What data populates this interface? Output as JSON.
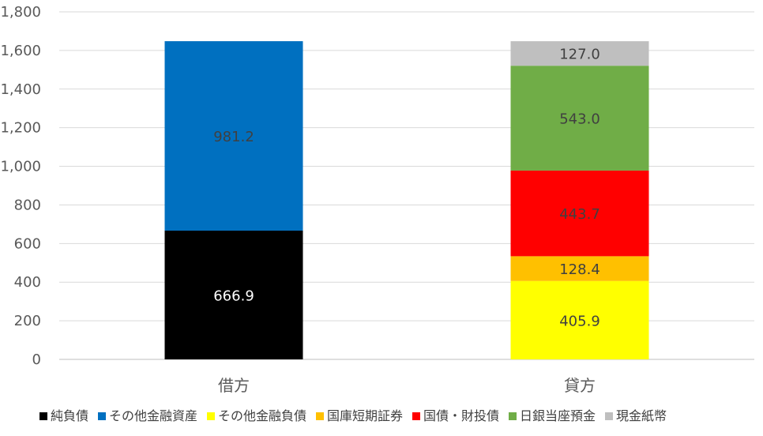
{
  "chart_data": {
    "type": "bar",
    "stacked": true,
    "categories": [
      "借方",
      "貸方"
    ],
    "ylim": [
      0,
      1800
    ],
    "yticks": [
      0,
      200,
      400,
      600,
      800,
      1000,
      1200,
      1400,
      1600,
      1800
    ],
    "ytick_labels": [
      "0",
      "200",
      "400",
      "600",
      "800",
      "1,000",
      "1,200",
      "1,400",
      "1,600",
      "1,800"
    ],
    "grid": true,
    "legend_position": "bottom",
    "series": [
      {
        "name": "純負債",
        "color": "#000000",
        "label_color": "#ffffff",
        "values": [
          666.9,
          null
        ],
        "labels": [
          "666.9",
          ""
        ]
      },
      {
        "name": "その他金融資産",
        "color": "#0070C0",
        "label_color": "#404040",
        "values": [
          981.2,
          null
        ],
        "labels": [
          "981.2",
          ""
        ]
      },
      {
        "name": "その他金融負債",
        "color": "#FFFF00",
        "label_color": "#404040",
        "values": [
          null,
          405.9
        ],
        "labels": [
          "",
          "405.9"
        ]
      },
      {
        "name": "国庫短期証券",
        "color": "#FFC000",
        "label_color": "#404040",
        "values": [
          null,
          128.4
        ],
        "labels": [
          "",
          "128.4"
        ]
      },
      {
        "name": "国債・財投債",
        "color": "#FF0000",
        "label_color": "#404040",
        "values": [
          null,
          443.7
        ],
        "labels": [
          "",
          "443.7"
        ]
      },
      {
        "name": "日銀当座預金",
        "color": "#70AD47",
        "label_color": "#404040",
        "values": [
          null,
          543.0
        ],
        "labels": [
          "",
          "543.0"
        ]
      },
      {
        "name": "現金紙幣",
        "color": "#BFBFBF",
        "label_color": "#404040",
        "values": [
          null,
          127.0
        ],
        "labels": [
          "",
          "127.0"
        ]
      }
    ]
  }
}
